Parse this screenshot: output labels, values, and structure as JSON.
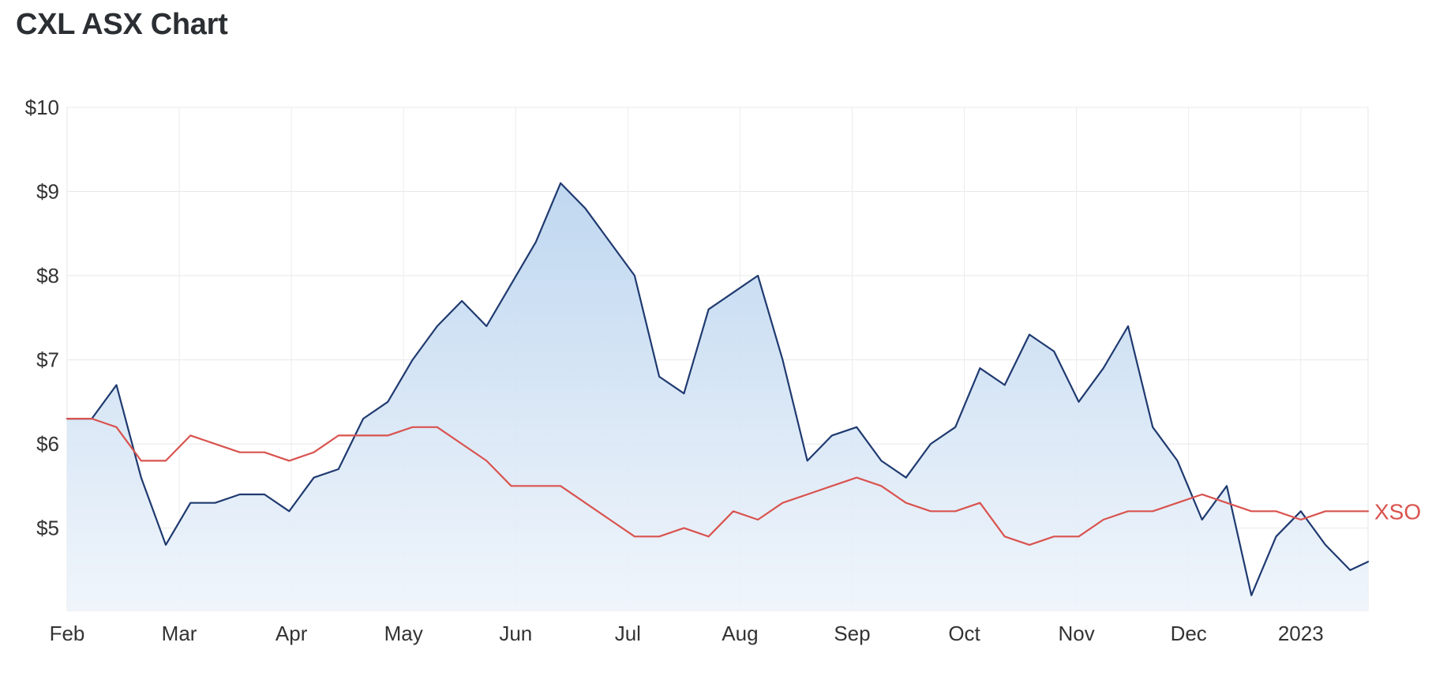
{
  "title": "CXL ASX Chart",
  "chart_data": {
    "type": "area",
    "title": "CXL ASX Chart",
    "xlabel": "",
    "ylabel": "",
    "x_tick_labels": [
      "Feb",
      "Mar",
      "Apr",
      "May",
      "Jun",
      "Jul",
      "Aug",
      "Sep",
      "Oct",
      "Nov",
      "Dec",
      "2023"
    ],
    "y_tick_labels": [
      "$5",
      "$6",
      "$7",
      "$8",
      "$9",
      "$10"
    ],
    "y_ticks": [
      5,
      6,
      7,
      8,
      9,
      10
    ],
    "ylim": [
      4.02,
      10.0
    ],
    "xlim": [
      1.0,
      12.6
    ],
    "grid": true,
    "series": [
      {
        "name": "CXL",
        "color": "#1f3a70",
        "fill": true,
        "x": [
          1.0,
          1.22,
          1.44,
          1.66,
          1.88,
          2.1,
          2.32,
          2.54,
          2.76,
          2.98,
          3.2,
          3.42,
          3.64,
          3.86,
          4.08,
          4.3,
          4.52,
          4.74,
          4.96,
          5.18,
          5.4,
          5.62,
          5.84,
          6.06,
          6.28,
          6.5,
          6.72,
          6.94,
          7.16,
          7.38,
          7.6,
          7.82,
          8.04,
          8.26,
          8.48,
          8.7,
          8.92,
          9.14,
          9.36,
          9.58,
          9.8,
          10.02,
          10.24,
          10.46,
          10.68,
          10.9,
          11.12,
          11.34,
          11.56,
          11.78,
          12.0,
          12.22,
          12.44,
          12.6
        ],
        "values": [
          6.3,
          6.3,
          6.7,
          5.6,
          4.8,
          5.3,
          5.3,
          5.4,
          5.4,
          5.2,
          5.6,
          5.7,
          6.3,
          6.5,
          7.0,
          7.4,
          7.7,
          7.4,
          7.9,
          8.4,
          9.1,
          8.8,
          8.4,
          8.0,
          6.8,
          6.6,
          7.6,
          7.8,
          8.0,
          7.0,
          5.8,
          6.1,
          6.2,
          5.8,
          5.6,
          6.0,
          6.2,
          6.9,
          6.7,
          7.3,
          7.1,
          6.5,
          6.9,
          7.4,
          6.2,
          5.8,
          5.1,
          5.5,
          4.2,
          4.9,
          5.2,
          4.8,
          4.5,
          4.6
        ]
      },
      {
        "name": "XSO",
        "color": "#d9534f",
        "fill": false,
        "x": [
          1.0,
          1.22,
          1.44,
          1.66,
          1.88,
          2.1,
          2.32,
          2.54,
          2.76,
          2.98,
          3.2,
          3.42,
          3.64,
          3.86,
          4.08,
          4.3,
          4.52,
          4.74,
          4.96,
          5.18,
          5.4,
          5.62,
          5.84,
          6.06,
          6.28,
          6.5,
          6.72,
          6.94,
          7.16,
          7.38,
          7.6,
          7.82,
          8.04,
          8.26,
          8.48,
          8.7,
          8.92,
          9.14,
          9.36,
          9.58,
          9.8,
          10.02,
          10.24,
          10.46,
          10.68,
          10.9,
          11.12,
          11.34,
          11.56,
          11.78,
          12.0,
          12.22,
          12.44,
          12.6
        ],
        "values": [
          6.3,
          6.3,
          6.2,
          5.8,
          5.8,
          6.1,
          6.0,
          5.9,
          5.9,
          5.8,
          5.9,
          6.1,
          6.1,
          6.1,
          6.2,
          6.2,
          6.0,
          5.8,
          5.5,
          5.5,
          5.5,
          5.3,
          5.1,
          4.9,
          4.9,
          5.0,
          4.9,
          5.2,
          5.1,
          5.3,
          5.4,
          5.5,
          5.6,
          5.5,
          5.3,
          5.2,
          5.2,
          5.3,
          4.9,
          4.8,
          4.9,
          4.9,
          5.1,
          5.2,
          5.2,
          5.3,
          5.4,
          5.3,
          5.2,
          5.2,
          5.1,
          5.2,
          5.2,
          5.2
        ]
      }
    ]
  }
}
